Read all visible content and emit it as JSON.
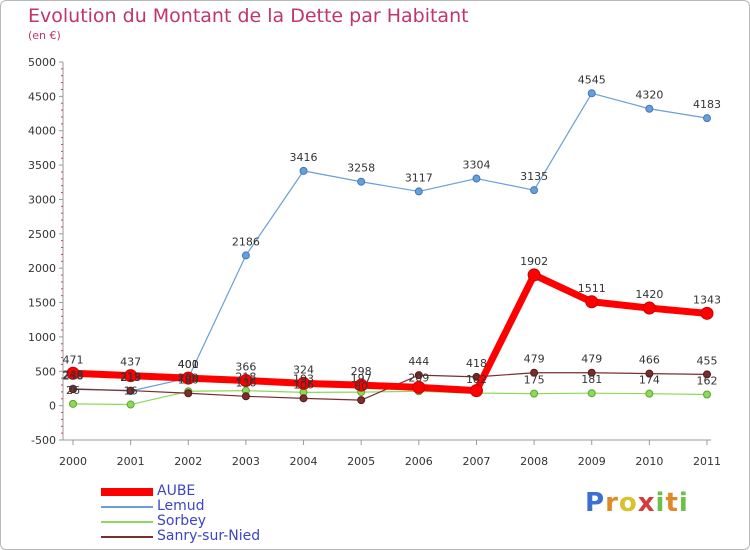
{
  "title": "Evolution du Montant de la Dette par Habitant",
  "unit": "(en €)",
  "chart_data": {
    "type": "line",
    "title": "Evolution du Montant de la Dette par Habitant",
    "ylabel": "(en €)",
    "xlabel": "",
    "ylim": [
      -500,
      5000
    ],
    "yticks": [
      -500,
      0,
      500,
      1000,
      1500,
      2000,
      2500,
      3000,
      3500,
      4000,
      4500,
      5000
    ],
    "x": [
      "2000",
      "2001",
      "2002",
      "2003",
      "2004",
      "2005",
      "2006",
      "2007",
      "2008",
      "2009",
      "2010",
      "2011"
    ],
    "grid": false,
    "legend_position": "bottom-left",
    "series": [
      {
        "name": "AUBE",
        "color": "#ff0000",
        "values": [
          471,
          437,
          400,
          366,
          324,
          298,
          266,
          218,
          1902,
          1511,
          1420,
          1343
        ],
        "labels": [
          "471",
          "437",
          "400",
          "366",
          "324",
          "298",
          "",
          "",
          "1902",
          "1511",
          "1420",
          "1343"
        ]
      },
      {
        "name": "Lemud",
        "color": "#6a9fd6",
        "values": [
          248,
          213,
          401,
          2186,
          3416,
          3258,
          3117,
          3304,
          3135,
          4545,
          4320,
          4183
        ],
        "labels": [
          "248",
          "213",
          "401",
          "2186",
          "3416",
          "3258",
          "3117",
          "3304",
          "3135",
          "4545",
          "4320",
          "4183"
        ]
      },
      {
        "name": "Sorbey",
        "color": "#8ed85a",
        "values": [
          26,
          16,
          209,
          218,
          193,
          197,
          209,
          182,
          175,
          181,
          174,
          162
        ],
        "labels": [
          "26",
          "16",
          "209",
          "218",
          "193",
          "197",
          "209",
          "182",
          "175",
          "181",
          "174",
          "162"
        ]
      },
      {
        "name": "Sanry-sur-Nied",
        "color": "#7a2e2e",
        "values": [
          238,
          219,
          180,
          136,
          106,
          80,
          444,
          418,
          479,
          479,
          466,
          455
        ],
        "labels": [
          "238",
          "219",
          "180",
          "136",
          "106",
          "80",
          "444",
          "418",
          "479",
          "479",
          "466",
          "455"
        ]
      }
    ]
  },
  "logo": {
    "letters": [
      "P",
      "r",
      "o",
      "x",
      "i",
      "t",
      "i"
    ],
    "colors": [
      "#3b6fd1",
      "#e0892a",
      "#d9c22e",
      "#d23c3c",
      "#6cc04a",
      "#e0892a",
      "#6cc04a"
    ]
  }
}
